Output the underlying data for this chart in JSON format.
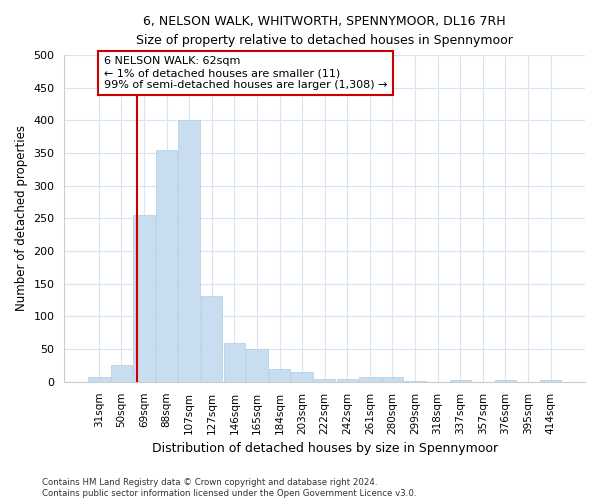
{
  "title": "6, NELSON WALK, WHITWORTH, SPENNYMOOR, DL16 7RH",
  "subtitle": "Size of property relative to detached houses in Spennymoor",
  "xlabel": "Distribution of detached houses by size in Spennymoor",
  "ylabel": "Number of detached properties",
  "categories": [
    "31sqm",
    "50sqm",
    "69sqm",
    "88sqm",
    "107sqm",
    "127sqm",
    "146sqm",
    "165sqm",
    "184sqm",
    "203sqm",
    "222sqm",
    "242sqm",
    "261sqm",
    "280sqm",
    "299sqm",
    "318sqm",
    "337sqm",
    "357sqm",
    "376sqm",
    "395sqm",
    "414sqm"
  ],
  "values": [
    7,
    25,
    255,
    355,
    400,
    132,
    60,
    50,
    20,
    15,
    4,
    4,
    7,
    7,
    2,
    0,
    3,
    0,
    3,
    0,
    3
  ],
  "bar_color": "#c8ddf0",
  "bar_edge_color": "#b0cde0",
  "vline_position": 1.68,
  "annotation_text": "6 NELSON WALK: 62sqm\n← 1% of detached houses are smaller (11)\n99% of semi-detached houses are larger (1,308) →",
  "annotation_box_color": "white",
  "annotation_box_edge_color": "#cc0000",
  "vline_color": "#cc0000",
  "ylim": [
    0,
    500
  ],
  "yticks": [
    0,
    50,
    100,
    150,
    200,
    250,
    300,
    350,
    400,
    450,
    500
  ],
  "footer_line1": "Contains HM Land Registry data © Crown copyright and database right 2024.",
  "footer_line2": "Contains public sector information licensed under the Open Government Licence v3.0.",
  "bg_color": "#ffffff",
  "plot_bg_color": "#ffffff",
  "grid_color": "#d8e4f0"
}
